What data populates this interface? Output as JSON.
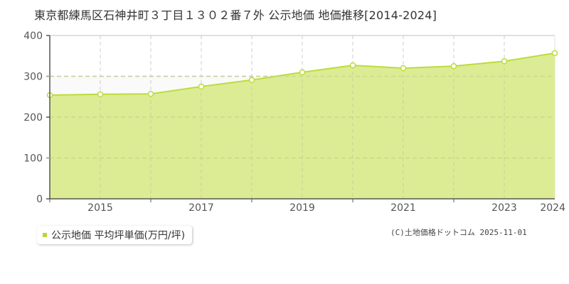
{
  "title": "東京都練馬区石神井町３丁目１３０２番７外 公示地価 地価推移[2014-2024]",
  "legend": {
    "label": "公示地価 平均坪単価(万円/坪)",
    "color": "#b5d936"
  },
  "credit": "(C)土地価格ドットコム 2025-11-01",
  "colors": {
    "fill": "#dcec94",
    "line": "#bcdc3c",
    "grid": "#cccccc",
    "axis": "#555555"
  },
  "chart_data": {
    "type": "area",
    "title": "東京都練馬区石神井町３丁目１３０２番７外 公示地価 地価推移[2014-2024]",
    "xlabel": "",
    "ylabel": "",
    "x": [
      2014,
      2015,
      2016,
      2017,
      2018,
      2019,
      2020,
      2021,
      2022,
      2023,
      2024
    ],
    "series": [
      {
        "name": "公示地価 平均坪単価(万円/坪)",
        "values": [
          254,
          256,
          257,
          275,
          291,
          310,
          327,
          320,
          325,
          337,
          357
        ]
      }
    ],
    "x_tick_labels": [
      "2015",
      "2017",
      "2019",
      "2021",
      "2023",
      "2024"
    ],
    "y_tick_labels": [
      "0",
      "100",
      "200",
      "300",
      "400"
    ],
    "ylim": [
      0,
      400
    ],
    "xlim": [
      2014,
      2024
    ],
    "grid": true,
    "legend_position": "bottom-left"
  }
}
